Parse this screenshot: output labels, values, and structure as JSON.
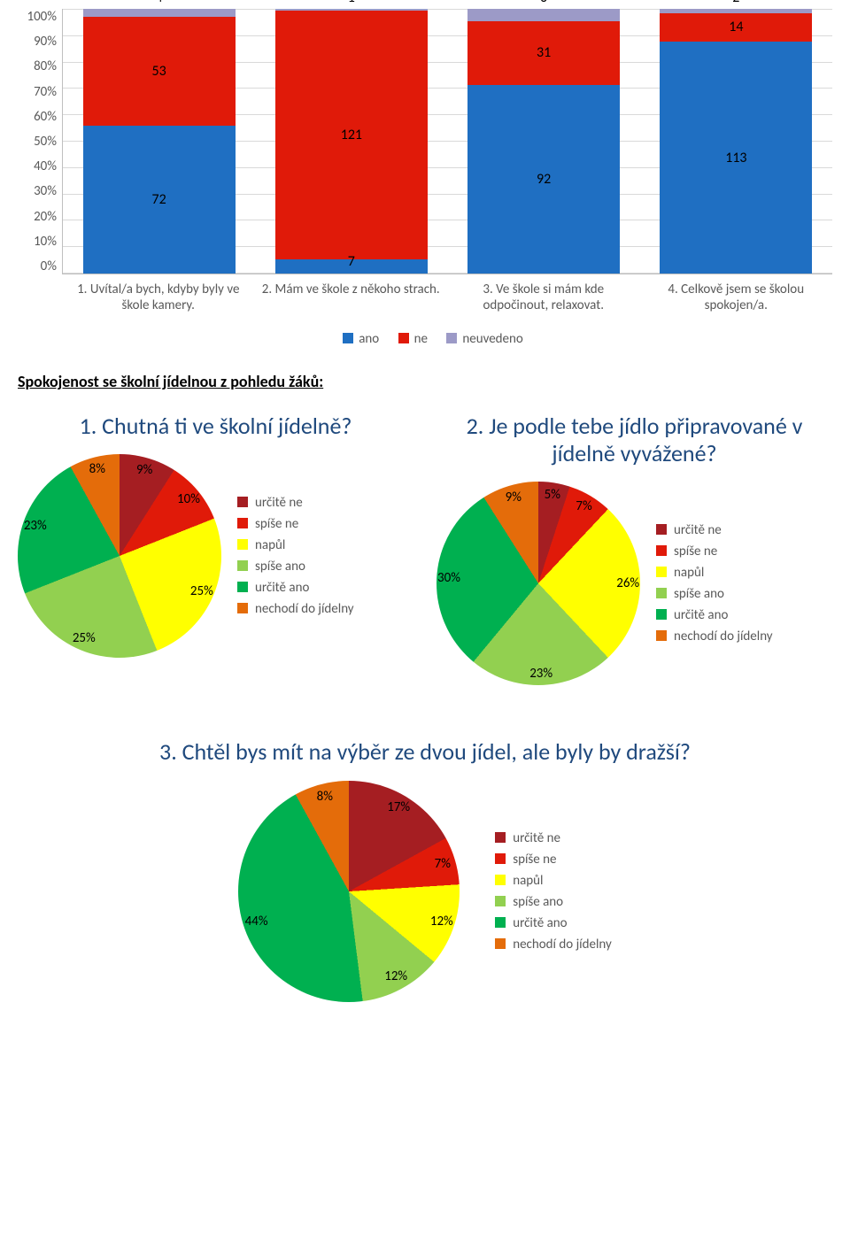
{
  "colors": {
    "ano": "#1f6fc2",
    "ne": "#e01a09",
    "neuvedeno": "#9c9ac7",
    "title": "#1f497d",
    "axis_text": "#595959",
    "grid": "#d9d9d9",
    "pie": {
      "urcite_ne": "#a51e22",
      "spise_ne": "#e01a09",
      "napul": "#ffff00",
      "spise_ano": "#92d050",
      "urcite_ano": "#00b050",
      "nechodi": "#e46c0a"
    }
  },
  "bar_chart": {
    "type": "stacked-bar-100",
    "y_ticks": [
      "100%",
      "90%",
      "80%",
      "70%",
      "60%",
      "50%",
      "40%",
      "30%",
      "20%",
      "10%",
      "0%"
    ],
    "categories": [
      "1. Uvítal/a bych, kdyby byly ve škole kamery.",
      "2. Mám ve škole z někoho strach.",
      "3. Ve škole si mám kde odpočinout, relaxovat.",
      "4. Celkově jsem se školou spokojen/a."
    ],
    "series": [
      "ano",
      "ne",
      "neuvedeno"
    ],
    "data": [
      {
        "ano": 72,
        "ne": 53,
        "neuvedeno": 4
      },
      {
        "ano": 7,
        "ne": 121,
        "neuvedeno": 1
      },
      {
        "ano": 92,
        "ne": 31,
        "neuvedeno": 6
      },
      {
        "ano": 113,
        "ne": 14,
        "neuvedeno": 2
      }
    ],
    "legend": {
      "ano": "ano",
      "ne": "ne",
      "neuvedeno": "neuvedeno"
    }
  },
  "section_heading": "Spokojenost se školní jídelnou z pohledu žáků:",
  "pie_legend_labels": {
    "urcite_ne": "určitě ne",
    "spise_ne": "spíše ne",
    "napul": "napůl",
    "spise_ano": "spíše ano",
    "urcite_ano": "určitě ano",
    "nechodi": "nechodí do jídelny"
  },
  "pie1": {
    "type": "pie",
    "title": "1. Chutná ti ve školní jídelně?",
    "legend_nechodi": "nechodí do jídelny",
    "slices": [
      {
        "key": "urcite_ne",
        "value": 9,
        "label": "9%"
      },
      {
        "key": "spise_ne",
        "value": 10,
        "label": "10%"
      },
      {
        "key": "napul",
        "value": 25,
        "label": "25%"
      },
      {
        "key": "spise_ano",
        "value": 25,
        "label": "25%"
      },
      {
        "key": "urcite_ano",
        "value": 23,
        "label": "23%"
      },
      {
        "key": "nechodi",
        "value": 8,
        "label": "8%"
      }
    ],
    "diameter": 230
  },
  "pie2": {
    "type": "pie",
    "title": "2. Je podle tebe jídlo připravované v jídelně vyvážené?",
    "legend_nechodi": "nechodí do jídelny",
    "slices": [
      {
        "key": "urcite_ne",
        "value": 5,
        "label": "5%"
      },
      {
        "key": "spise_ne",
        "value": 7,
        "label": "7%"
      },
      {
        "key": "napul",
        "value": 26,
        "label": "26%"
      },
      {
        "key": "spise_ano",
        "value": 23,
        "label": "23%"
      },
      {
        "key": "urcite_ano",
        "value": 30,
        "label": "30%"
      },
      {
        "key": "nechodi",
        "value": 9,
        "label": "9%"
      }
    ],
    "diameter": 230
  },
  "pie3": {
    "type": "pie",
    "title": "3. Chtěl bys mít na výběr ze dvou jídel, ale byly by dražší?",
    "legend_nechodi": "nechodí do jídelny",
    "slices": [
      {
        "key": "urcite_ne",
        "value": 17,
        "label": "17%"
      },
      {
        "key": "spise_ne",
        "value": 7,
        "label": "7%"
      },
      {
        "key": "napul",
        "value": 12,
        "label": "12%"
      },
      {
        "key": "spise_ano",
        "value": 12,
        "label": "12%"
      },
      {
        "key": "urcite_ano",
        "value": 44,
        "label": "44%"
      },
      {
        "key": "nechodi",
        "value": 8,
        "label": "8%"
      }
    ],
    "diameter": 250
  }
}
